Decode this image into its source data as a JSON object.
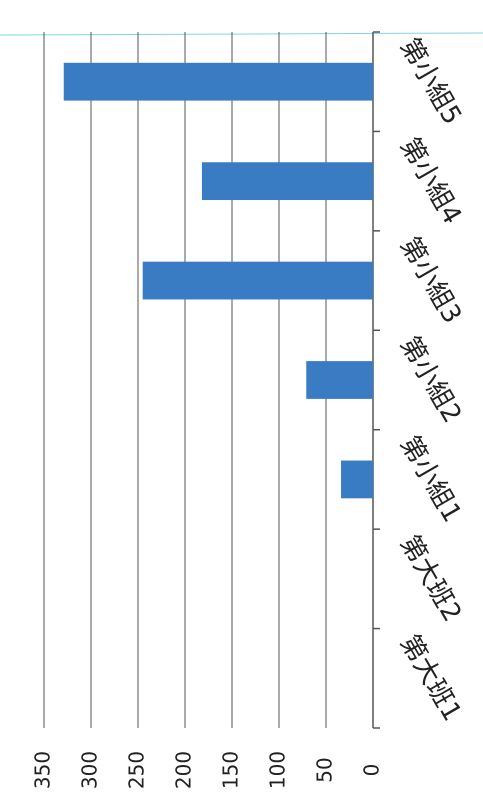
{
  "chart_data": {
    "type": "bar",
    "orientation": "horizontal",
    "categories": [
      "第大班1",
      "第大班2",
      "第小組1",
      "第小組2",
      "第小組3",
      "第小組4",
      "第小組5"
    ],
    "values": [
      null,
      null,
      34,
      71,
      245,
      182,
      329
    ],
    "color": "#3a7cc3",
    "xlim": [
      0,
      350
    ],
    "xticks": [
      0,
      50,
      100,
      150,
      200,
      250,
      300,
      350
    ],
    "grid": true
  }
}
